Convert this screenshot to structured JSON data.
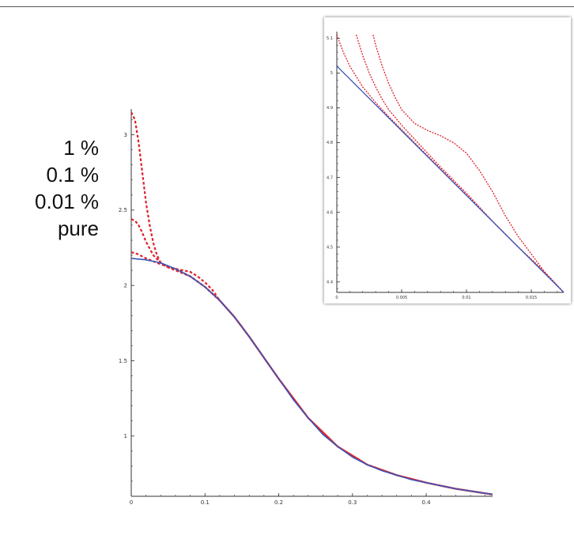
{
  "legend": {
    "labels": [
      "1 %",
      "0.1 %",
      "0.01 %",
      "pure"
    ]
  },
  "colors": {
    "dashed": "#e0202a",
    "pure": "#3a57b7",
    "axis": "#333333"
  },
  "chart_data": [
    {
      "type": "line",
      "xlim": [
        0,
        0.49
      ],
      "ylim": [
        0.6,
        3.15
      ],
      "xticks": [
        0,
        0.1,
        0.2,
        0.3,
        0.4
      ],
      "xtick_labels": [
        "0",
        "0.1",
        "0.2",
        "0.3",
        "0.4"
      ],
      "yticks": [
        1,
        1.5,
        2,
        2.5,
        3
      ],
      "ytick_labels": [
        "1",
        "1.5",
        "2",
        "2.5",
        "3"
      ],
      "series": [
        {
          "name": "pure",
          "style": "solid",
          "x": [
            0,
            0.02,
            0.04,
            0.06,
            0.08,
            0.1,
            0.12,
            0.14,
            0.16,
            0.18,
            0.2,
            0.22,
            0.24,
            0.26,
            0.28,
            0.3,
            0.32,
            0.34,
            0.36,
            0.38,
            0.4,
            0.42,
            0.44,
            0.46,
            0.48,
            0.49
          ],
          "y": [
            2.18,
            2.17,
            2.15,
            2.11,
            2.06,
            1.99,
            1.9,
            1.79,
            1.66,
            1.52,
            1.38,
            1.24,
            1.12,
            1.01,
            0.93,
            0.86,
            0.81,
            0.77,
            0.74,
            0.71,
            0.69,
            0.67,
            0.65,
            0.635,
            0.62,
            0.612
          ]
        },
        {
          "name": "0.01 %",
          "style": "dashed",
          "x": [
            0,
            0.005,
            0.01,
            0.02,
            0.03,
            0.04,
            0.06,
            0.08,
            0.1,
            0.12,
            0.14,
            0.16,
            0.18,
            0.2,
            0.24,
            0.28,
            0.32,
            0.36,
            0.4,
            0.44,
            0.49
          ],
          "y": [
            2.22,
            2.215,
            2.205,
            2.18,
            2.16,
            2.14,
            2.11,
            2.06,
            1.99,
            1.9,
            1.79,
            1.66,
            1.52,
            1.38,
            1.12,
            0.93,
            0.81,
            0.74,
            0.69,
            0.65,
            0.612
          ]
        },
        {
          "name": "0.1 %",
          "style": "dashed",
          "x": [
            0,
            0.005,
            0.01,
            0.015,
            0.02,
            0.03,
            0.04,
            0.05,
            0.06,
            0.08,
            0.1,
            0.12,
            0.14,
            0.16,
            0.18,
            0.2,
            0.24,
            0.28,
            0.32,
            0.36,
            0.4,
            0.44,
            0.49
          ],
          "y": [
            2.44,
            2.43,
            2.4,
            2.35,
            2.29,
            2.2,
            2.15,
            2.12,
            2.1,
            2.06,
            1.99,
            1.9,
            1.79,
            1.66,
            1.52,
            1.38,
            1.12,
            0.93,
            0.81,
            0.74,
            0.69,
            0.65,
            0.612
          ]
        },
        {
          "name": "1 %",
          "style": "dashed",
          "x": [
            0,
            0.005,
            0.01,
            0.015,
            0.02,
            0.025,
            0.03,
            0.035,
            0.04,
            0.05,
            0.06,
            0.07,
            0.08,
            0.09,
            0.1,
            0.11,
            0.12,
            0.14,
            0.16,
            0.18,
            0.2,
            0.24,
            0.28,
            0.32,
            0.36,
            0.4,
            0.44,
            0.49
          ],
          "y": [
            3.15,
            3.1,
            2.95,
            2.75,
            2.55,
            2.4,
            2.28,
            2.2,
            2.15,
            2.12,
            2.11,
            2.1,
            2.09,
            2.06,
            2.02,
            1.97,
            1.9,
            1.79,
            1.66,
            1.52,
            1.38,
            1.12,
            0.93,
            0.81,
            0.74,
            0.69,
            0.65,
            0.612
          ]
        }
      ]
    },
    {
      "type": "line",
      "xlim": [
        0,
        0.0175
      ],
      "ylim": [
        4.37,
        5.11
      ],
      "xticks": [
        0,
        0.005,
        0.01,
        0.015
      ],
      "xtick_labels": [
        "0",
        "0.005",
        "0.01",
        "0.015"
      ],
      "yticks": [
        4.4,
        4.5,
        4.6,
        4.7,
        4.8,
        4.9,
        5.0,
        5.1
      ],
      "ytick_labels": [
        "4.4",
        "4.5",
        "4.6",
        "4.7",
        "4.8",
        "4.9",
        "5",
        "5.1"
      ],
      "series": [
        {
          "name": "pure",
          "style": "solid",
          "x": [
            0,
            0.0175
          ],
          "y": [
            5.02,
            4.37
          ]
        },
        {
          "name": "0.01 %",
          "style": "dashed",
          "x": [
            0,
            0.0005,
            0.001,
            0.0015,
            0.002,
            0.003,
            0.004,
            0.006,
            0.008,
            0.01,
            0.012,
            0.014,
            0.016,
            0.0175
          ],
          "y": [
            5.11,
            5.06,
            5.02,
            4.99,
            4.96,
            4.915,
            4.875,
            4.8,
            4.725,
            4.65,
            4.575,
            4.5,
            4.43,
            4.37
          ]
        },
        {
          "name": "0.1 %",
          "style": "dashed",
          "x": [
            0.0015,
            0.002,
            0.0025,
            0.003,
            0.0035,
            0.004,
            0.005,
            0.006,
            0.007,
            0.008,
            0.01,
            0.012,
            0.014,
            0.016,
            0.0175
          ],
          "y": [
            5.11,
            5.05,
            5.0,
            4.96,
            4.925,
            4.895,
            4.85,
            4.81,
            4.77,
            4.73,
            4.655,
            4.575,
            4.5,
            4.43,
            4.37
          ]
        },
        {
          "name": "1 %",
          "style": "dashed",
          "x": [
            0.0028,
            0.003,
            0.0035,
            0.004,
            0.0045,
            0.005,
            0.006,
            0.007,
            0.008,
            0.009,
            0.01,
            0.011,
            0.012,
            0.013,
            0.014,
            0.015,
            0.016,
            0.0175
          ],
          "y": [
            5.11,
            5.08,
            5.02,
            4.97,
            4.93,
            4.895,
            4.855,
            4.835,
            4.82,
            4.8,
            4.77,
            4.72,
            4.66,
            4.59,
            4.53,
            4.48,
            4.43,
            4.37
          ]
        }
      ]
    }
  ]
}
